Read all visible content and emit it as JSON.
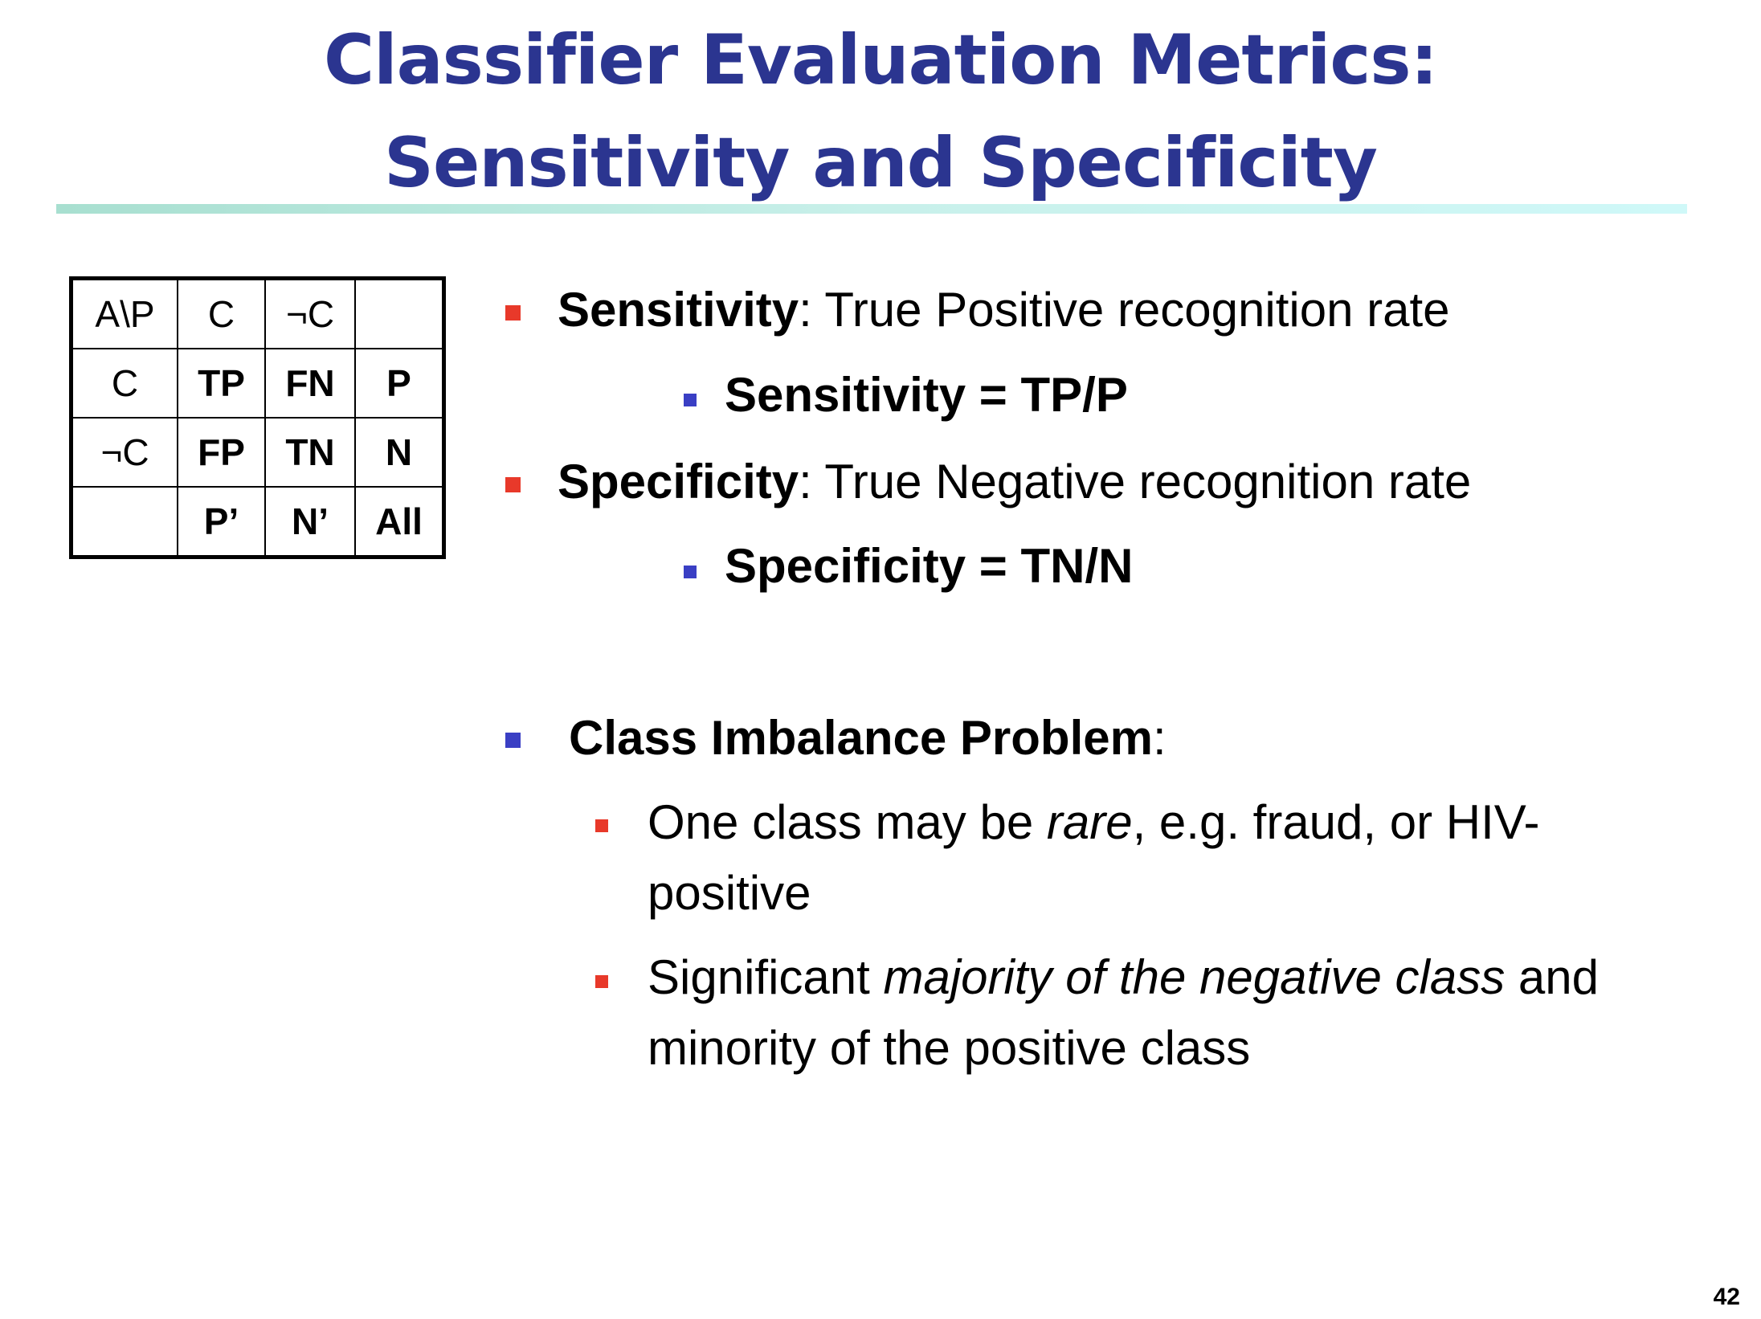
{
  "slide": {
    "title_line1": "Classifier Evaluation Metrics:",
    "title_line2": "Sensitivity and Specificity",
    "page_number": "42"
  },
  "matrix": {
    "rows": [
      [
        "A\\P",
        "C",
        "¬C",
        ""
      ],
      [
        "C",
        "TP",
        "FN",
        "P"
      ],
      [
        "¬C",
        "FP",
        "TN",
        "N"
      ],
      [
        "",
        "P’",
        "N’",
        "All"
      ]
    ]
  },
  "bullets": {
    "sensitivity_term": "Sensitivity",
    "sensitivity_desc": ": True Positive recognition rate",
    "sensitivity_formula": "Sensitivity = TP/P",
    "specificity_term": "Specificity",
    "specificity_desc": ": True Negative recognition rate",
    "specificity_formula": "Specificity = TN/N",
    "imbalance_term": "Class Imbalance Problem",
    "imbalance_colon": ":",
    "rare_a": "One class may be ",
    "rare_b": "rare",
    "rare_c": ", e.g. fraud, or HIV-",
    "rare_d": "positive",
    "maj_a": "Significant ",
    "maj_b": "majority of the negative class",
    "maj_c": " and",
    "maj_d": "minority of the positive class"
  },
  "colors": {
    "title": "#2b3590",
    "bullet_red": "#e8392a",
    "bullet_blue": "#3a3fc4"
  }
}
